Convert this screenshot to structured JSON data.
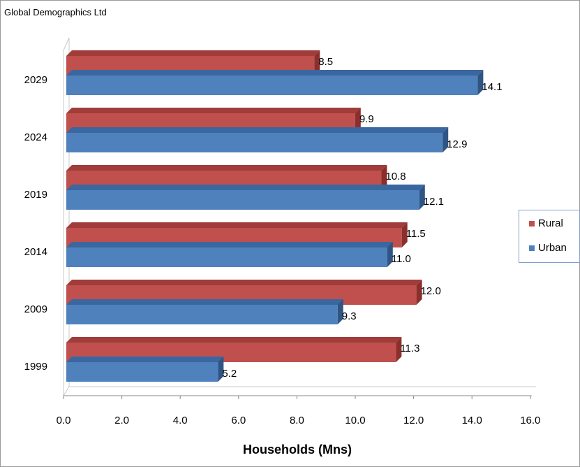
{
  "source_label": "Global Demographics Ltd",
  "colors": {
    "rural": "#c0504d",
    "rural_top": "#a03c39",
    "rural_side": "#8c2f2c",
    "urban": "#4f81bd",
    "urban_top": "#3a67a0",
    "urban_side": "#2f5585",
    "wall": "#c8c8c8"
  },
  "chart_data": {
    "type": "bar",
    "orientation": "horizontal",
    "three_d": true,
    "categories": [
      "2029",
      "2024",
      "2019",
      "2014",
      "2009",
      "1999"
    ],
    "series": [
      {
        "name": "Rural",
        "values": [
          8.5,
          9.9,
          10.8,
          11.5,
          12.0,
          11.3
        ],
        "labels": [
          "8.5",
          "9.9",
          "10.8",
          "11.5",
          "12.0",
          "11.3"
        ]
      },
      {
        "name": "Urban",
        "values": [
          14.1,
          12.9,
          12.1,
          11.0,
          9.3,
          5.2
        ],
        "labels": [
          "14.1",
          "12.9",
          "12.1",
          "11.0",
          "9.3",
          "5.2"
        ]
      }
    ],
    "xlabel": "Households (Mns)",
    "xlim": [
      0,
      16
    ],
    "xticks": [
      "0.0",
      "2.0",
      "4.0",
      "6.0",
      "8.0",
      "10.0",
      "12.0",
      "14.0",
      "16.0"
    ],
    "grid": false,
    "legend_position": "right"
  }
}
